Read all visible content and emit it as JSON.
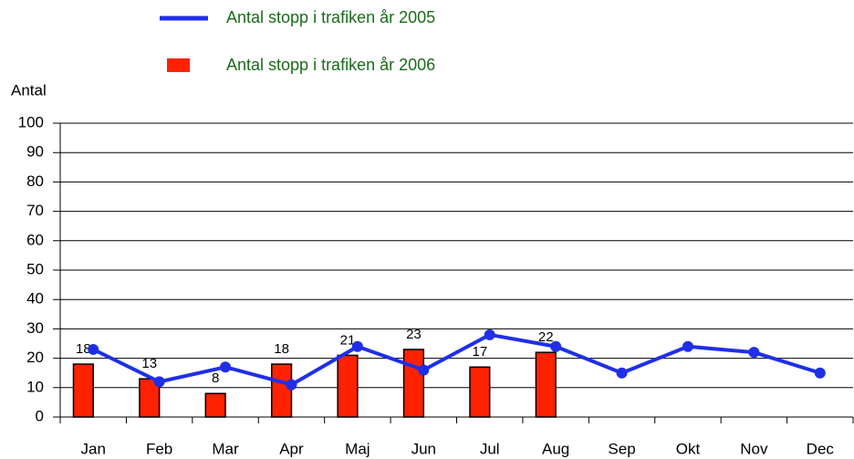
{
  "chart_data": {
    "type": "bar",
    "y_label": "Antal",
    "categories": [
      "Jan",
      "Feb",
      "Mar",
      "Apr",
      "Maj",
      "Jun",
      "Jul",
      "Aug",
      "Sep",
      "Okt",
      "Nov",
      "Dec"
    ],
    "series": [
      {
        "name": "Antal stopp i trafiken  år 2005",
        "type": "line",
        "color": "#1f2fe8",
        "values": [
          23,
          12,
          17,
          11,
          24,
          16,
          28,
          24,
          15,
          24,
          22,
          15
        ]
      },
      {
        "name": "Antal stopp i trafiken  år 2006",
        "type": "bar",
        "color": "#ff2200",
        "values": [
          18,
          13,
          8,
          18,
          21,
          23,
          17,
          22,
          null,
          null,
          null,
          null
        ],
        "data_labels": true
      }
    ],
    "ylim": [
      0,
      100
    ],
    "yticks": [
      0,
      10,
      20,
      30,
      40,
      50,
      60,
      70,
      80,
      90,
      100
    ],
    "grid": true,
    "legend": "top"
  }
}
